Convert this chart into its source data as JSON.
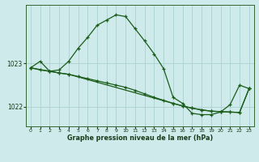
{
  "title": "Graphe pression niveau de la mer (hPa)",
  "bg_color": "#ceeaea",
  "grid_color": "#b0d4d4",
  "line_color": "#1a5c1a",
  "xlim": [
    -0.5,
    23.5
  ],
  "ylim": [
    1021.55,
    1024.35
  ],
  "yticks": [
    1022,
    1023
  ],
  "xticks": [
    0,
    1,
    2,
    3,
    4,
    5,
    6,
    7,
    8,
    9,
    10,
    11,
    12,
    13,
    14,
    15,
    16,
    17,
    18,
    19,
    20,
    21,
    22,
    23
  ],
  "series1_x": [
    0,
    1,
    2,
    3,
    4,
    5,
    6,
    7,
    8,
    9,
    10,
    11,
    12,
    13,
    14,
    15,
    16,
    17,
    18,
    19,
    20,
    21,
    22,
    23
  ],
  "series1_y": [
    1022.9,
    1023.05,
    1022.82,
    1022.85,
    1023.05,
    1023.35,
    1023.6,
    1023.88,
    1024.0,
    1024.12,
    1024.08,
    1023.8,
    1023.52,
    1023.22,
    1022.88,
    1022.22,
    1022.08,
    1021.85,
    1021.82,
    1021.82,
    1021.88,
    1022.05,
    1022.5,
    1022.42
  ],
  "series2_x": [
    0,
    1,
    2,
    3,
    4,
    5,
    6,
    7,
    8,
    9,
    10,
    11,
    12,
    13,
    14,
    15,
    16,
    17,
    18,
    19,
    20,
    21,
    22,
    23
  ],
  "series2_y": [
    1022.9,
    1022.85,
    1022.82,
    1022.78,
    1022.75,
    1022.7,
    1022.65,
    1022.6,
    1022.55,
    1022.5,
    1022.45,
    1022.38,
    1022.3,
    1022.22,
    1022.15,
    1022.08,
    1022.02,
    1021.97,
    1021.93,
    1021.9,
    1021.89,
    1021.88,
    1021.87,
    1022.42
  ],
  "series3_x": [
    0,
    2,
    3,
    4,
    15,
    16,
    17,
    18,
    19,
    20,
    21,
    22,
    23
  ],
  "series3_y": [
    1022.9,
    1022.82,
    1022.78,
    1022.75,
    1022.08,
    1022.02,
    1021.97,
    1021.93,
    1021.9,
    1021.89,
    1021.88,
    1021.87,
    1022.42
  ]
}
